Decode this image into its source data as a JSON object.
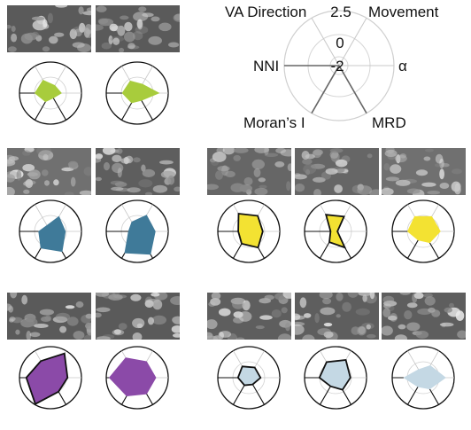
{
  "legend": {
    "axes": [
      "VA Direction",
      "Movement",
      "α",
      "MRD",
      "Moran’s I",
      "NNI"
    ],
    "ring_values": [
      "2.5",
      "0",
      "-2"
    ]
  },
  "colors": {
    "green": "#a8cc3c",
    "blue": "#3f7a99",
    "yellow": "#f3e232",
    "purple": "#8b4aa8",
    "lightblue": "#c4d8e4",
    "outline": "#111111",
    "spoke": "#c6c6c6",
    "ring": "#d0d0d0"
  },
  "groups": [
    {
      "id": "green",
      "color": "green",
      "cells": [
        {
          "values": [
            0.48,
            0.28,
            0.35,
            0.18,
            0.32,
            0.5
          ],
          "outline": false
        },
        {
          "values": [
            0.45,
            0.33,
            0.7,
            0.27,
            0.36,
            0.48
          ],
          "outline": false
        }
      ]
    },
    {
      "id": "blue",
      "color": "blue",
      "cells": [
        {
          "values": [
            0.22,
            0.55,
            0.48,
            0.75,
            0.62,
            0.38
          ],
          "outline": false
        },
        {
          "values": [
            0.35,
            0.6,
            0.58,
            0.85,
            0.8,
            0.28
          ],
          "outline": false
        }
      ]
    },
    {
      "id": "yellow",
      "color": "yellow",
      "cells": [
        {
          "values": [
            0.66,
            0.58,
            0.45,
            0.6,
            0.46,
            0.34
          ],
          "outline": true
        },
        {
          "values": [
            0.62,
            0.55,
            0.06,
            0.6,
            0.4,
            0.16
          ],
          "outline": true
        },
        {
          "values": [
            0.55,
            0.55,
            0.55,
            0.42,
            0.32,
            0.5
          ],
          "outline": false
        }
      ]
    },
    {
      "id": "purple",
      "color": "purple",
      "cells": [
        {
          "values": [
            0.62,
            0.9,
            0.55,
            0.52,
            0.98,
            0.78
          ],
          "outline": true
        },
        {
          "values": [
            0.74,
            0.6,
            0.6,
            0.6,
            0.68,
            0.9
          ],
          "outline": false
        }
      ]
    },
    {
      "id": "lightblue",
      "color": "lightblue",
      "cells": [
        {
          "values": [
            0.42,
            0.38,
            0.38,
            0.25,
            0.28,
            0.35
          ],
          "outline": true
        },
        {
          "values": [
            0.58,
            0.66,
            0.48,
            0.45,
            0.32,
            0.52
          ],
          "outline": true
        },
        {
          "values": [
            0.3,
            0.45,
            0.72,
            0.42,
            0.34,
            0.62
          ],
          "outline": false
        }
      ]
    }
  ]
}
